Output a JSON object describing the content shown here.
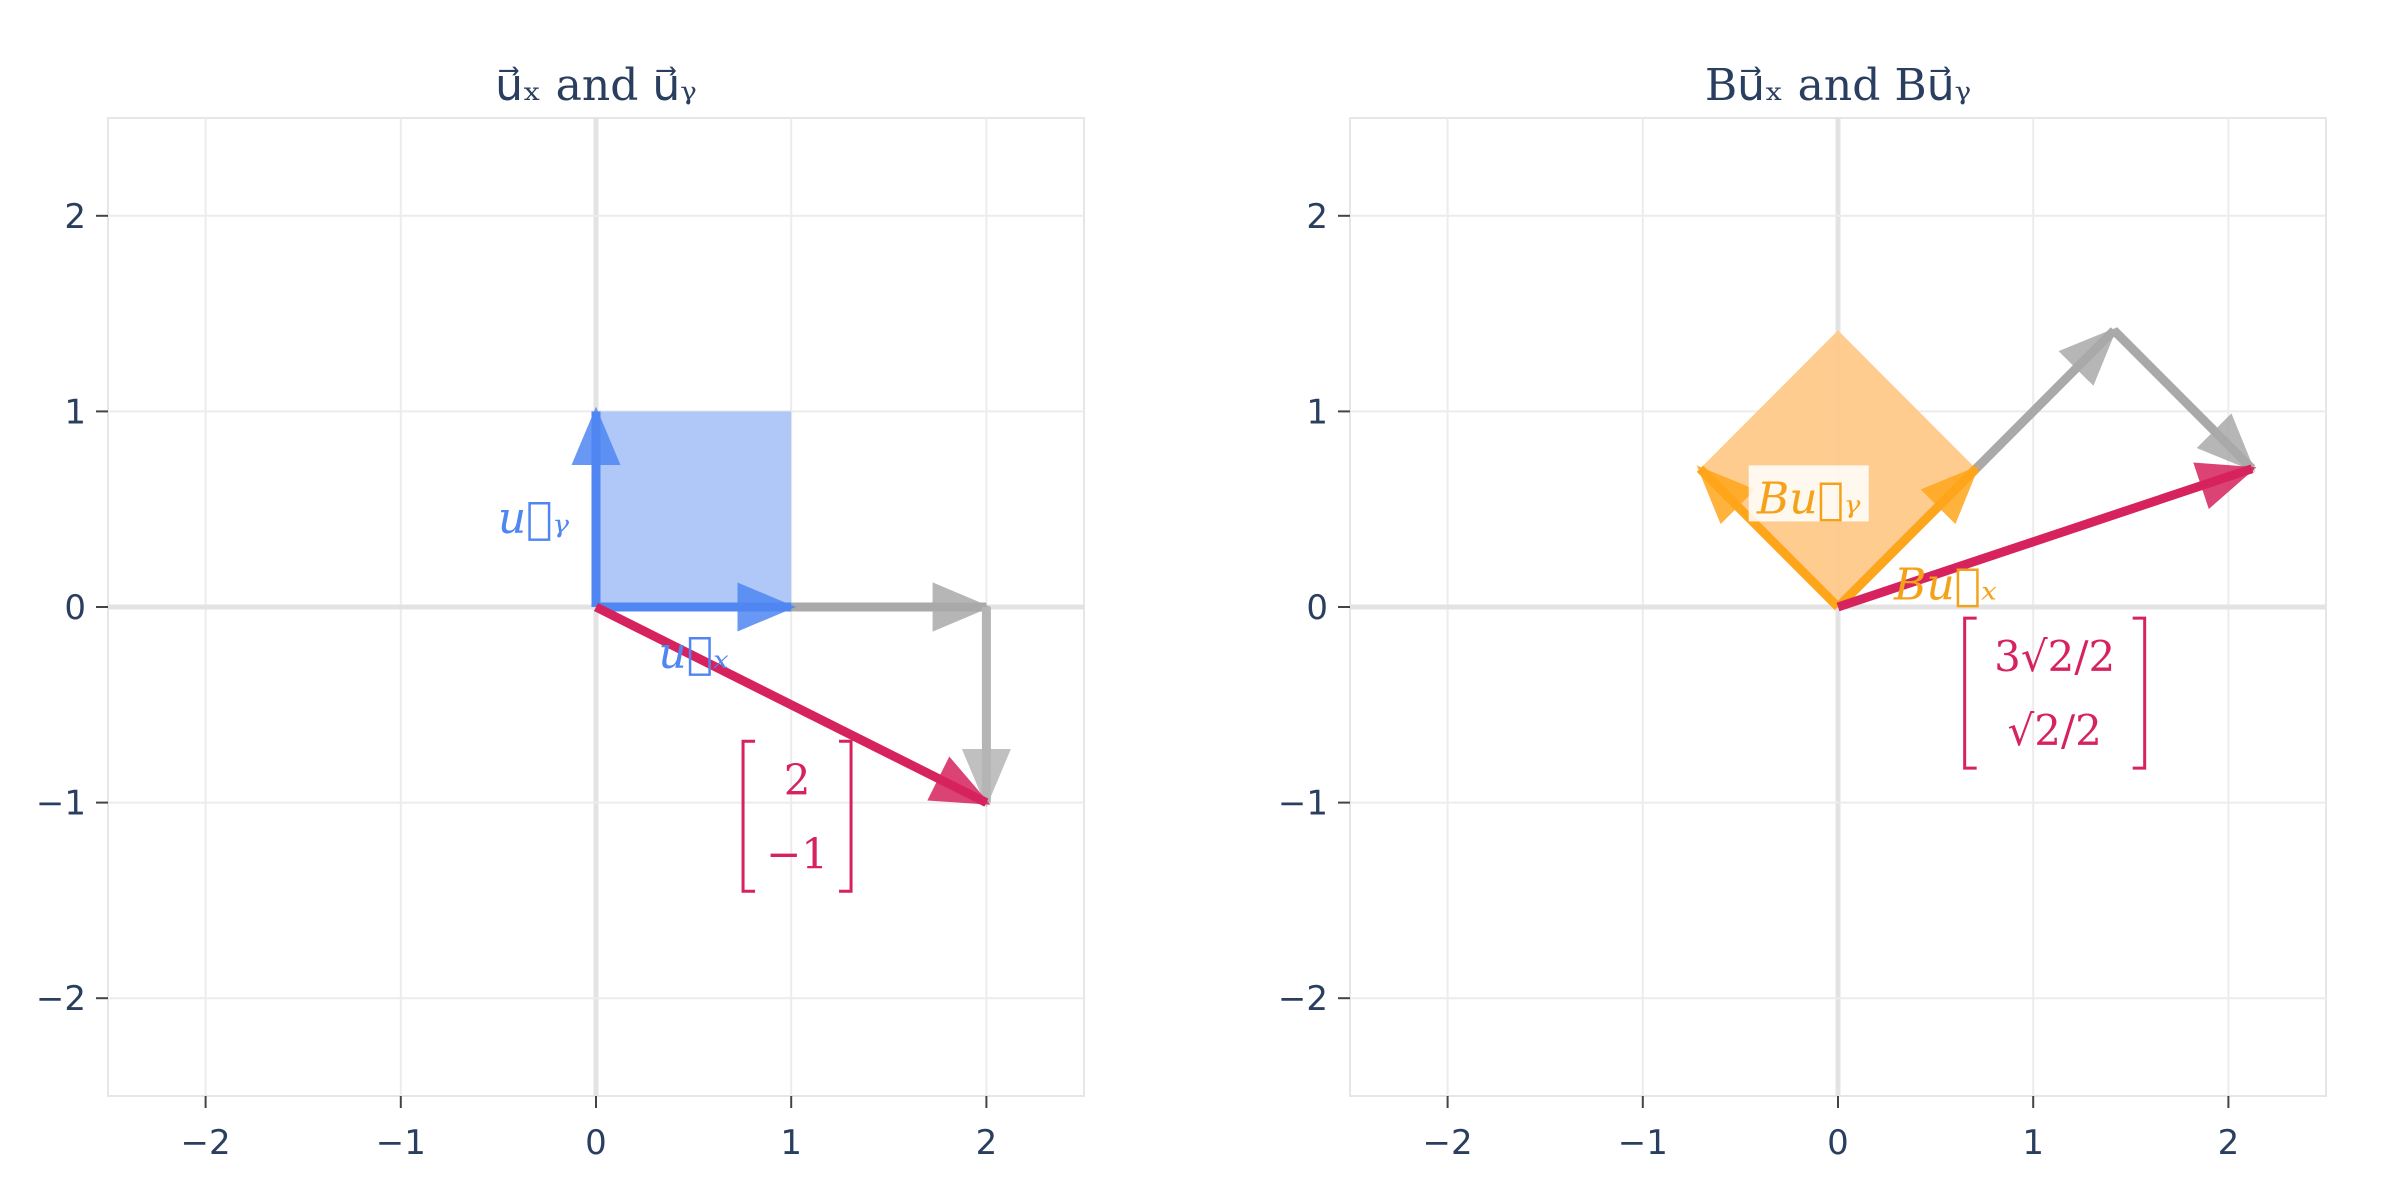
{
  "chart_data": [
    {
      "type": "vector-plot",
      "title": "u⃗ₓ and u⃗ᵧ",
      "xlim": [
        -2.5,
        2.5
      ],
      "ylim": [
        -2.5,
        2.5
      ],
      "xticks": [
        -2,
        -1,
        0,
        1,
        2
      ],
      "yticks": [
        -2,
        -1,
        0,
        1,
        2
      ],
      "xtick_labels": [
        "−2",
        "−1",
        "0",
        "1",
        "2"
      ],
      "ytick_labels": [
        "−2",
        "−1",
        "0",
        "1",
        "2"
      ],
      "grid": true,
      "shapes": [
        {
          "kind": "polygon",
          "points": [
            [
              0,
              0
            ],
            [
              1,
              0
            ],
            [
              1,
              1
            ],
            [
              0,
              1
            ]
          ],
          "color": "#a7c2f7",
          "opacity": 0.9
        }
      ],
      "vectors": [
        {
          "from": [
            0,
            0
          ],
          "to": [
            2,
            0
          ],
          "color": "#a9a9a9"
        },
        {
          "from": [
            2,
            0
          ],
          "to": [
            2,
            -1
          ],
          "color": "#b5b5b5"
        },
        {
          "from": [
            0,
            0
          ],
          "to": [
            1,
            0
          ],
          "color": "#4f86f2"
        },
        {
          "from": [
            0,
            0
          ],
          "to": [
            0,
            1
          ],
          "color": "#4f86f2"
        },
        {
          "from": [
            0,
            0
          ],
          "to": [
            2,
            -1
          ],
          "color": "#d6225d"
        }
      ],
      "annotations": [
        {
          "text": "u⃗ᵧ",
          "at": [
            -0.32,
            0.45
          ],
          "color": "#4f86f2"
        },
        {
          "text": "u⃗ₓ",
          "at": [
            0.5,
            -0.24
          ],
          "color": "#4f86f2"
        }
      ],
      "matrix": {
        "rows": [
          "2",
          "−1"
        ],
        "center": [
          1.03,
          -1.07
        ],
        "color": "#d6225d"
      }
    },
    {
      "type": "vector-plot",
      "title": "Bu⃗ₓ and Bu⃗ᵧ",
      "xlim": [
        -2.5,
        2.5
      ],
      "ylim": [
        -2.5,
        2.5
      ],
      "xticks": [
        -2,
        -1,
        0,
        1,
        2
      ],
      "yticks": [
        -2,
        -1,
        0,
        1,
        2
      ],
      "xtick_labels": [
        "−2",
        "−1",
        "0",
        "1",
        "2"
      ],
      "ytick_labels": [
        "−2",
        "−1",
        "0",
        "1",
        "2"
      ],
      "grid": true,
      "shapes": [
        {
          "kind": "polygon",
          "points": [
            [
              0,
              0
            ],
            [
              0.707,
              0.707
            ],
            [
              0,
              1.414
            ],
            [
              -0.707,
              0.707
            ]
          ],
          "color": "#ffc98a",
          "opacity": 0.95
        }
      ],
      "vectors": [
        {
          "from": [
            0,
            0
          ],
          "to": [
            1.414,
            1.414
          ],
          "color": "#a9a9a9"
        },
        {
          "from": [
            1.414,
            1.414
          ],
          "to": [
            2.121,
            0.707
          ],
          "color": "#a9a9a9"
        },
        {
          "from": [
            0,
            0
          ],
          "to": [
            0.707,
            0.707
          ],
          "color": "#ffa51a"
        },
        {
          "from": [
            0,
            0
          ],
          "to": [
            -0.707,
            0.707
          ],
          "color": "#ffa51a"
        },
        {
          "from": [
            0,
            0
          ],
          "to": [
            2.121,
            0.707
          ],
          "color": "#d6225d"
        }
      ],
      "annotations": [
        {
          "text": "Bu⃗ᵧ",
          "at": [
            -0.15,
            0.55
          ],
          "color": "#f5a21b",
          "boxed": true
        },
        {
          "text": "Bu⃗ₓ",
          "at": [
            0.55,
            0.11
          ],
          "color": "#f5a21b"
        }
      ],
      "matrix": {
        "rows": [
          "3√2/2",
          "√2/2"
        ],
        "center": [
          1.11,
          -0.44
        ],
        "color": "#d6225d"
      }
    }
  ]
}
